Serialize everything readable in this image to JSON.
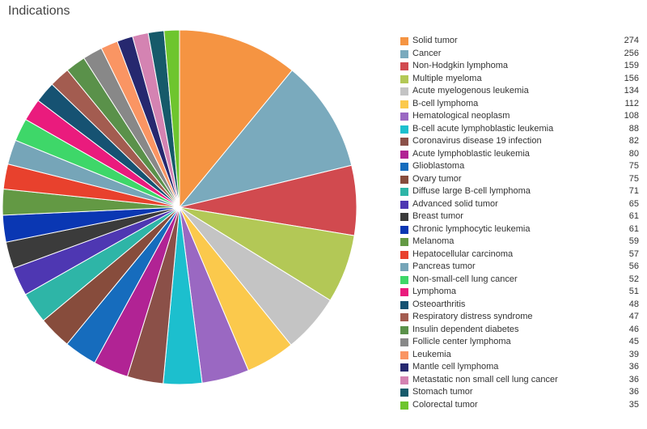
{
  "chart_data": {
    "type": "pie",
    "title": "Indications",
    "legend_position": "right",
    "slices": [
      {
        "label": "Solid tumor",
        "value": 274,
        "color": "#f59442"
      },
      {
        "label": "Cancer",
        "value": 256,
        "color": "#7aaabd"
      },
      {
        "label": "Non-Hodgkin lymphoma",
        "value": 159,
        "color": "#d14a4f"
      },
      {
        "label": "Multiple myeloma",
        "value": 156,
        "color": "#b3c856"
      },
      {
        "label": "Acute myelogenous leukemia",
        "value": 134,
        "color": "#c4c4c4"
      },
      {
        "label": "B-cell lymphoma",
        "value": 112,
        "color": "#fbc94c"
      },
      {
        "label": "Hematological neoplasm",
        "value": 108,
        "color": "#9a68c2"
      },
      {
        "label": "B-cell acute lymphoblastic leukemia",
        "value": 88,
        "color": "#1cbfce"
      },
      {
        "label": "Coronavirus disease 19 infection",
        "value": 82,
        "color": "#8b5048"
      },
      {
        "label": "Acute lymphoblastic leukemia",
        "value": 80,
        "color": "#b12394"
      },
      {
        "label": "Glioblastoma",
        "value": 75,
        "color": "#166cbd"
      },
      {
        "label": "Ovary tumor",
        "value": 75,
        "color": "#874c3c"
      },
      {
        "label": "Diffuse large B-cell lymphoma",
        "value": 71,
        "color": "#2eb5a7"
      },
      {
        "label": "Advanced solid tumor",
        "value": 65,
        "color": "#4e37b2"
      },
      {
        "label": "Breast tumor",
        "value": 61,
        "color": "#3b3b3b"
      },
      {
        "label": "Chronic lymphocytic leukemia",
        "value": 61,
        "color": "#0a37b3"
      },
      {
        "label": "Melanoma",
        "value": 59,
        "color": "#639944"
      },
      {
        "label": "Hepatocellular carcinoma",
        "value": 57,
        "color": "#e8412d"
      },
      {
        "label": "Pancreas tumor",
        "value": 56,
        "color": "#76a5b8"
      },
      {
        "label": "Non-small-cell lung cancer",
        "value": 52,
        "color": "#3ed769"
      },
      {
        "label": "Lymphoma",
        "value": 51,
        "color": "#ea1b7d"
      },
      {
        "label": "Osteoarthritis",
        "value": 48,
        "color": "#165272"
      },
      {
        "label": "Respiratory distress syndrome",
        "value": 47,
        "color": "#a35c50"
      },
      {
        "label": "Insulin dependent diabetes",
        "value": 46,
        "color": "#5a914a"
      },
      {
        "label": "Follicle center lymphoma",
        "value": 45,
        "color": "#888888"
      },
      {
        "label": "Leukemia",
        "value": 39,
        "color": "#fa9563"
      },
      {
        "label": "Mantle cell lymphoma",
        "value": 36,
        "color": "#26286f"
      },
      {
        "label": "Metastatic non small cell lung cancer",
        "value": 36,
        "color": "#d483b2"
      },
      {
        "label": "Stomach tumor",
        "value": 36,
        "color": "#165a6a"
      },
      {
        "label": "Colorectal tumor",
        "value": 35,
        "color": "#6ec52e"
      }
    ]
  }
}
